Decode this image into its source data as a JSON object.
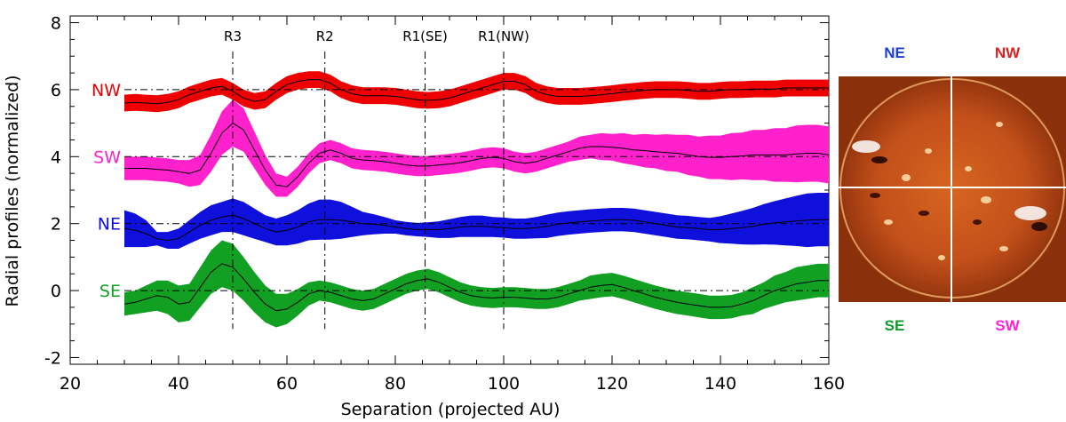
{
  "chart_data": {
    "type": "line",
    "title": "",
    "xlabel": "Separation (projected AU)",
    "ylabel": "Radial profiles (normalized)",
    "xlim": [
      20,
      160
    ],
    "ylim": [
      -2.2,
      8.2
    ],
    "x_ticks": [
      20,
      40,
      60,
      80,
      100,
      120,
      140,
      160
    ],
    "y_ticks": [
      -2,
      0,
      2,
      4,
      6,
      8
    ],
    "grid": false,
    "x": [
      30,
      32,
      34,
      36,
      38,
      40,
      42,
      44,
      46,
      48,
      50,
      52,
      54,
      56,
      58,
      60,
      62,
      64,
      66,
      68,
      70,
      72,
      74,
      76,
      78,
      80,
      82,
      84,
      86,
      88,
      90,
      92,
      94,
      96,
      98,
      100,
      102,
      104,
      106,
      108,
      110,
      112,
      114,
      116,
      118,
      120,
      122,
      124,
      126,
      128,
      130,
      132,
      134,
      136,
      138,
      140,
      142,
      144,
      146,
      148,
      150,
      152,
      154,
      156,
      158,
      160
    ],
    "series": [
      {
        "name": "NW",
        "color": "#ee0000",
        "offset": 6,
        "values": [
          5.6,
          5.62,
          5.6,
          5.58,
          5.62,
          5.7,
          5.85,
          5.95,
          6.05,
          6.1,
          5.95,
          5.75,
          5.65,
          5.7,
          5.95,
          6.15,
          6.25,
          6.3,
          6.3,
          6.2,
          6.0,
          5.88,
          5.82,
          5.82,
          5.82,
          5.8,
          5.75,
          5.7,
          5.68,
          5.7,
          5.75,
          5.85,
          5.95,
          6.05,
          6.15,
          6.25,
          6.25,
          6.15,
          5.95,
          5.85,
          5.8,
          5.8,
          5.8,
          5.82,
          5.85,
          5.88,
          5.92,
          5.95,
          5.98,
          6.0,
          6.0,
          6.0,
          5.98,
          5.95,
          5.95,
          5.98,
          6.0,
          6.0,
          6.02,
          6.02,
          6.02,
          6.05,
          6.05,
          6.05,
          6.05,
          6.05
        ],
        "spread": [
          0.25,
          0.25,
          0.25,
          0.25,
          0.25,
          0.25,
          0.25,
          0.25,
          0.25,
          0.25,
          0.25,
          0.25,
          0.25,
          0.25,
          0.25,
          0.25,
          0.25,
          0.25,
          0.25,
          0.25,
          0.25,
          0.25,
          0.25,
          0.25,
          0.25,
          0.25,
          0.25,
          0.25,
          0.25,
          0.25,
          0.25,
          0.25,
          0.25,
          0.25,
          0.25,
          0.25,
          0.25,
          0.25,
          0.25,
          0.25,
          0.25,
          0.25,
          0.25,
          0.25,
          0.25,
          0.25,
          0.25,
          0.25,
          0.25,
          0.25,
          0.25,
          0.25,
          0.25,
          0.25,
          0.25,
          0.25,
          0.25,
          0.25,
          0.25,
          0.25,
          0.25,
          0.25,
          0.25,
          0.25,
          0.25,
          0.25
        ]
      },
      {
        "name": "SW",
        "color": "#ff22cc",
        "offset": 4,
        "values": [
          3.65,
          3.65,
          3.65,
          3.62,
          3.6,
          3.55,
          3.5,
          3.6,
          4.1,
          4.7,
          5.0,
          4.8,
          4.2,
          3.6,
          3.15,
          3.1,
          3.4,
          3.8,
          4.1,
          4.2,
          4.1,
          3.95,
          3.9,
          3.88,
          3.85,
          3.8,
          3.75,
          3.72,
          3.72,
          3.75,
          3.78,
          3.82,
          3.88,
          3.95,
          3.98,
          3.95,
          3.85,
          3.8,
          3.85,
          3.95,
          4.05,
          4.15,
          4.25,
          4.3,
          4.3,
          4.28,
          4.25,
          4.2,
          4.18,
          4.15,
          4.12,
          4.1,
          4.05,
          4.0,
          3.98,
          3.98,
          4.0,
          4.02,
          4.05,
          4.05,
          4.05,
          4.05,
          4.08,
          4.1,
          4.1,
          4.05
        ],
        "spread": [
          0.35,
          0.35,
          0.35,
          0.35,
          0.35,
          0.35,
          0.4,
          0.45,
          0.55,
          0.65,
          0.7,
          0.65,
          0.55,
          0.45,
          0.35,
          0.3,
          0.3,
          0.3,
          0.3,
          0.3,
          0.3,
          0.3,
          0.3,
          0.3,
          0.3,
          0.3,
          0.3,
          0.3,
          0.3,
          0.3,
          0.3,
          0.3,
          0.3,
          0.3,
          0.3,
          0.3,
          0.3,
          0.3,
          0.3,
          0.3,
          0.3,
          0.3,
          0.35,
          0.35,
          0.4,
          0.4,
          0.45,
          0.45,
          0.5,
          0.5,
          0.55,
          0.55,
          0.6,
          0.6,
          0.65,
          0.65,
          0.7,
          0.7,
          0.75,
          0.75,
          0.8,
          0.8,
          0.85,
          0.85,
          0.85,
          0.85
        ]
      },
      {
        "name": "NE",
        "color": "#1010dd",
        "offset": 2,
        "values": [
          1.85,
          1.8,
          1.7,
          1.55,
          1.5,
          1.55,
          1.75,
          1.95,
          2.1,
          2.2,
          2.25,
          2.15,
          2.0,
          1.85,
          1.75,
          1.8,
          1.9,
          2.05,
          2.12,
          2.12,
          2.1,
          2.05,
          2.0,
          1.98,
          1.95,
          1.9,
          1.85,
          1.82,
          1.82,
          1.82,
          1.85,
          1.9,
          1.92,
          1.92,
          1.9,
          1.88,
          1.85,
          1.85,
          1.88,
          1.92,
          1.98,
          2.02,
          2.05,
          2.08,
          2.1,
          2.12,
          2.12,
          2.1,
          2.05,
          2.0,
          1.95,
          1.9,
          1.88,
          1.85,
          1.82,
          1.82,
          1.85,
          1.88,
          1.92,
          1.98,
          2.02,
          2.05,
          2.08,
          2.1,
          2.12,
          2.12
        ],
        "spread": [
          0.55,
          0.5,
          0.4,
          0.2,
          0.25,
          0.3,
          0.35,
          0.4,
          0.45,
          0.45,
          0.5,
          0.5,
          0.45,
          0.4,
          0.4,
          0.45,
          0.5,
          0.55,
          0.6,
          0.6,
          0.55,
          0.45,
          0.35,
          0.3,
          0.25,
          0.2,
          0.2,
          0.2,
          0.22,
          0.25,
          0.28,
          0.3,
          0.32,
          0.32,
          0.3,
          0.3,
          0.3,
          0.3,
          0.32,
          0.35,
          0.35,
          0.35,
          0.35,
          0.35,
          0.35,
          0.35,
          0.35,
          0.35,
          0.35,
          0.35,
          0.35,
          0.35,
          0.35,
          0.35,
          0.35,
          0.4,
          0.45,
          0.5,
          0.55,
          0.6,
          0.65,
          0.7,
          0.75,
          0.8,
          0.8,
          0.8
        ]
      },
      {
        "name": "SE",
        "color": "#11a022",
        "offset": 0,
        "values": [
          -0.4,
          -0.35,
          -0.25,
          -0.15,
          -0.2,
          -0.4,
          -0.35,
          0.1,
          0.55,
          0.8,
          0.7,
          0.35,
          -0.05,
          -0.4,
          -0.6,
          -0.55,
          -0.35,
          -0.1,
          0.0,
          -0.05,
          -0.15,
          -0.25,
          -0.3,
          -0.25,
          -0.1,
          0.05,
          0.2,
          0.3,
          0.35,
          0.25,
          0.1,
          -0.05,
          -0.15,
          -0.2,
          -0.22,
          -0.2,
          -0.2,
          -0.22,
          -0.25,
          -0.25,
          -0.2,
          -0.1,
          0.0,
          0.1,
          0.15,
          0.18,
          0.1,
          0.0,
          -0.1,
          -0.2,
          -0.28,
          -0.35,
          -0.4,
          -0.45,
          -0.5,
          -0.5,
          -0.48,
          -0.4,
          -0.3,
          -0.15,
          0.0,
          0.1,
          0.2,
          0.25,
          0.3,
          0.3
        ],
        "spread": [
          0.35,
          0.35,
          0.4,
          0.45,
          0.5,
          0.55,
          0.55,
          0.6,
          0.65,
          0.7,
          0.7,
          0.65,
          0.6,
          0.55,
          0.5,
          0.45,
          0.4,
          0.35,
          0.3,
          0.3,
          0.3,
          0.3,
          0.3,
          0.3,
          0.3,
          0.3,
          0.3,
          0.3,
          0.3,
          0.3,
          0.3,
          0.3,
          0.3,
          0.3,
          0.3,
          0.3,
          0.3,
          0.3,
          0.3,
          0.3,
          0.3,
          0.3,
          0.3,
          0.35,
          0.35,
          0.35,
          0.35,
          0.35,
          0.35,
          0.35,
          0.35,
          0.35,
          0.35,
          0.35,
          0.35,
          0.35,
          0.35,
          0.35,
          0.4,
          0.4,
          0.45,
          0.45,
          0.5,
          0.5,
          0.5,
          0.5
        ]
      }
    ],
    "markers": [
      {
        "label": "R3",
        "x": 50
      },
      {
        "label": "R2",
        "x": 67
      },
      {
        "label": "R1(SE)",
        "x": 85.5
      },
      {
        "label": "R1(NW)",
        "x": 100
      }
    ],
    "inset": {
      "quadrant_labels": [
        {
          "label": "NE",
          "color": "#1a3fd0",
          "corner": "top-left"
        },
        {
          "label": "NW",
          "color": "#e02020",
          "corner": "top-right"
        },
        {
          "label": "SE",
          "color": "#129a2e",
          "corner": "bottom-left"
        },
        {
          "label": "SW",
          "color": "#ff22dd",
          "corner": "bottom-right"
        }
      ]
    }
  }
}
